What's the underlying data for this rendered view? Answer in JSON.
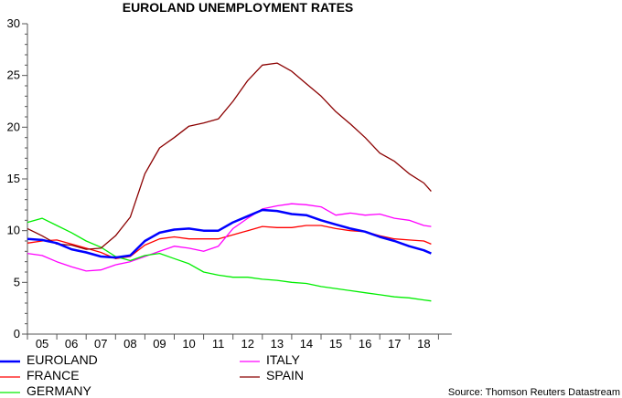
{
  "chart_data": {
    "type": "line",
    "title": "EUROLAND UNEMPLOYMENT RATES",
    "xlabel": "",
    "ylabel": "",
    "ylim": [
      0,
      30
    ],
    "xlim": [
      2005,
      2019.45
    ],
    "yticks": [
      "0",
      "5",
      "10",
      "15",
      "20",
      "25",
      "30"
    ],
    "xtick_labels": [
      "05",
      "06",
      "07",
      "08",
      "09",
      "10",
      "11",
      "12",
      "13",
      "14",
      "15",
      "16",
      "17",
      "18"
    ],
    "grid": false,
    "legend_placement": "bottom",
    "x": [
      2005,
      2005.5,
      2006,
      2006.5,
      2007,
      2007.5,
      2008,
      2008.5,
      2009,
      2009.5,
      2010,
      2010.5,
      2011,
      2011.5,
      2012,
      2012.5,
      2013,
      2013.5,
      2014,
      2014.5,
      2015,
      2015.5,
      2016,
      2016.5,
      2017,
      2017.5,
      2018,
      2018.5,
      2018.75
    ],
    "series": [
      {
        "name": "EUROLAND",
        "color": "#0000ff",
        "width": 2.5,
        "values": [
          9.2,
          9.1,
          8.8,
          8.2,
          7.9,
          7.5,
          7.4,
          7.6,
          9.0,
          9.8,
          10.1,
          10.2,
          10.0,
          10.0,
          10.8,
          11.4,
          12.0,
          11.9,
          11.6,
          11.5,
          11.0,
          10.6,
          10.2,
          9.9,
          9.4,
          9.0,
          8.5,
          8.1,
          7.8
        ]
      },
      {
        "name": "FRANCE",
        "color": "#ff0000",
        "width": 1.3,
        "values": [
          8.8,
          9.0,
          9.1,
          8.7,
          8.3,
          7.9,
          7.3,
          7.5,
          8.6,
          9.2,
          9.4,
          9.2,
          9.2,
          9.2,
          9.6,
          10.0,
          10.4,
          10.3,
          10.3,
          10.5,
          10.5,
          10.2,
          10.0,
          9.9,
          9.5,
          9.2,
          9.1,
          9.0,
          8.7
        ]
      },
      {
        "name": "GERMANY",
        "color": "#00ee00",
        "width": 1.3,
        "values": [
          10.8,
          11.2,
          10.5,
          9.8,
          9.0,
          8.4,
          7.5,
          7.1,
          7.6,
          7.8,
          7.3,
          6.8,
          6.0,
          5.7,
          5.5,
          5.5,
          5.3,
          5.2,
          5.0,
          4.9,
          4.6,
          4.4,
          4.2,
          4.0,
          3.8,
          3.6,
          3.5,
          3.3,
          3.2
        ]
      },
      {
        "name": "ITALY",
        "color": "#ff00ff",
        "width": 1.3,
        "values": [
          7.8,
          7.6,
          7.0,
          6.5,
          6.1,
          6.2,
          6.7,
          7.0,
          7.5,
          8.0,
          8.5,
          8.3,
          8.0,
          8.5,
          10.2,
          11.2,
          12.1,
          12.4,
          12.6,
          12.5,
          12.3,
          11.5,
          11.7,
          11.5,
          11.6,
          11.2,
          11.0,
          10.5,
          10.4
        ]
      },
      {
        "name": "SPAIN",
        "color": "#8b0000",
        "width": 1.3,
        "values": [
          10.2,
          9.5,
          8.7,
          8.6,
          8.2,
          8.3,
          9.5,
          11.3,
          15.5,
          18.0,
          19.0,
          20.1,
          20.4,
          20.8,
          22.5,
          24.5,
          26.0,
          26.2,
          25.4,
          24.2,
          23.0,
          21.5,
          20.3,
          19.0,
          17.5,
          16.7,
          15.5,
          14.6,
          13.8
        ]
      }
    ],
    "source": "Source: Thomson Reuters Datastream"
  }
}
